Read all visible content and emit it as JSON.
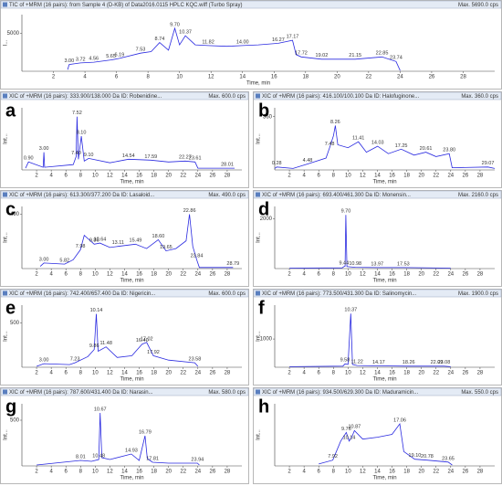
{
  "chart_data": [
    {
      "type": "line",
      "title": "TIC of +MRM (16 pairs): from Sample 4 (D-KB) of Data2016.0115 HPLC KQC.wiff (Turbo Spray)",
      "max_label": "Max. 5690.0 cps",
      "y_label": "I...",
      "x_label": "Time, min",
      "color": "#2a2ae0",
      "xlim": [
        0,
        30
      ],
      "xticks": [
        2,
        4,
        6,
        8,
        10,
        12,
        14,
        16,
        18,
        20,
        22,
        24,
        26,
        28
      ],
      "ylim": [
        0,
        7500
      ],
      "yticks": [
        5000
      ],
      "x": [
        2.9,
        3.0,
        3.72,
        4.56,
        5.65,
        6.19,
        7.53,
        8.2,
        8.74,
        9.3,
        9.7,
        10.0,
        10.37,
        11.0,
        11.82,
        13.0,
        14.0,
        15.0,
        16.27,
        17.17,
        17.4,
        17.72,
        19.02,
        21.15,
        22.85,
        23.74,
        24.0
      ],
      "values": [
        200,
        900,
        1100,
        1200,
        1500,
        1700,
        2400,
        2600,
        3800,
        2800,
        5690,
        3500,
        4700,
        3500,
        3400,
        3300,
        3400,
        3500,
        3700,
        4100,
        2200,
        1900,
        1600,
        1600,
        1900,
        1300,
        100
      ],
      "peaks": [
        "3.00",
        "3.72",
        "4.56",
        "5.65",
        "6.19",
        "7.53",
        "8.74",
        "9.70",
        "10.37",
        "11.82",
        "14.00",
        "16.27",
        "17.17",
        "17.72",
        "19.02",
        "21.15",
        "22.85",
        "23.74"
      ]
    },
    {
      "type": "line",
      "letter": "a",
      "title": "XIC of +MRM (16 pairs): 333.900/138.000 Da ID: Robenidine...",
      "max_label": "Max. 600.0 cps",
      "y_label": "Int...",
      "x_label": "Time, min",
      "color": "#2a2ae0",
      "xlim": [
        0,
        30
      ],
      "xticks": [
        2,
        4,
        6,
        8,
        10,
        12,
        14,
        16,
        18,
        20,
        22,
        24,
        26,
        28
      ],
      "ylim": [
        0,
        700
      ],
      "yticks": [],
      "x": [
        0.5,
        0.9,
        2.9,
        3.0,
        3.1,
        7.0,
        7.4,
        7.52,
        7.7,
        8.1,
        8.5,
        9.1,
        12,
        14.54,
        17.59,
        20,
        22.27,
        23.61,
        24,
        28.01,
        29
      ],
      "values": [
        20,
        90,
        30,
        200,
        30,
        60,
        150,
        600,
        120,
        380,
        100,
        130,
        80,
        120,
        110,
        90,
        100,
        90,
        20,
        20,
        20
      ],
      "peaks": [
        "0.90",
        "3.00",
        "7.40",
        "7.52",
        "8.10",
        "9.10",
        "14.54",
        "17.59",
        "22.27",
        "23.61",
        "28.01"
      ]
    },
    {
      "type": "line",
      "letter": "b",
      "title": "XIC of +MRM (16 pairs): 416.100/100.100 Da ID: Halofuginone...",
      "max_label": "Max. 360.0 cps",
      "y_label": "Int...",
      "x_label": "Time, min",
      "color": "#2a2ae0",
      "xlim": [
        0,
        30
      ],
      "xticks": [
        2,
        4,
        6,
        8,
        10,
        12,
        14,
        16,
        18,
        20,
        22,
        24,
        26,
        28
      ],
      "ylim": [
        0,
        420
      ],
      "yticks": [
        360
      ],
      "x": [
        0,
        0.28,
        2.5,
        4.48,
        7,
        7.48,
        8.0,
        8.26,
        8.6,
        10,
        11.41,
        12.5,
        14.03,
        15.5,
        17.25,
        19,
        20.61,
        22,
        23.8,
        24.2,
        29.07,
        30
      ],
      "values": [
        10,
        20,
        10,
        40,
        80,
        150,
        230,
        300,
        170,
        150,
        190,
        120,
        160,
        110,
        140,
        100,
        120,
        90,
        110,
        15,
        20,
        10
      ],
      "peaks": [
        "0.28",
        "4.48",
        "7.48",
        "8.26",
        "11.41",
        "14.03",
        "17.25",
        "20.61",
        "23.80",
        "29.07"
      ]
    },
    {
      "type": "line",
      "letter": "c",
      "title": "XIC of +MRM (16 pairs): 613.300/377.200 Da ID: Lasaloid...",
      "max_label": "Max. 490.0 cps",
      "y_label": "Int...",
      "x_label": "Time, min",
      "color": "#2a2ae0",
      "xlim": [
        0,
        30
      ],
      "xticks": [
        2,
        4,
        6,
        8,
        10,
        12,
        14,
        16,
        18,
        20,
        22,
        24,
        26,
        28
      ],
      "ylim": [
        0,
        560
      ],
      "yticks": [
        490
      ],
      "x": [
        2.5,
        3.0,
        5.82,
        7.0,
        7.98,
        8.5,
        9.86,
        10.64,
        12,
        13.11,
        15.49,
        17,
        18.6,
        19.65,
        21,
        22.4,
        22.86,
        23.3,
        23.84,
        24.2,
        28.79
      ],
      "values": [
        20,
        50,
        40,
        80,
        170,
        300,
        220,
        230,
        190,
        200,
        220,
        180,
        260,
        160,
        180,
        250,
        490,
        200,
        80,
        10,
        10
      ],
      "peaks": [
        "3.00",
        "5.82",
        "7.98",
        "9.86",
        "10.64",
        "13.11",
        "15.49",
        "18.60",
        "19.65",
        "22.86",
        "23.84",
        "28.79"
      ]
    },
    {
      "type": "line",
      "letter": "d",
      "title": "XIC of +MRM (16 pairs): 693.400/461.300 Da ID: Monensin...",
      "max_label": "Max. 2160.0 cps",
      "y_label": "Int...",
      "x_label": "Time, min",
      "color": "#2a2ae0",
      "xlim": [
        0,
        30
      ],
      "xticks": [
        2,
        4,
        6,
        8,
        10,
        12,
        14,
        16,
        18,
        20,
        22,
        24,
        26,
        28
      ],
      "ylim": [
        0,
        2500
      ],
      "yticks": [
        2000
      ],
      "x": [
        2,
        9.2,
        9.44,
        9.6,
        9.7,
        9.85,
        10.98,
        13.97,
        17.53,
        24
      ],
      "values": [
        20,
        30,
        80,
        100,
        2160,
        80,
        50,
        40,
        40,
        20
      ],
      "peaks": [
        "9.44",
        "9.70",
        "10.98",
        "13.97",
        "17.53"
      ]
    },
    {
      "type": "line",
      "letter": "e",
      "title": "XIC of +MRM (16 pairs): 742.400/657.400 Da ID: Nigericin...",
      "max_label": "Max. 600.0 cps",
      "y_label": "Int...",
      "x_label": "Time, min",
      "color": "#2a2ae0",
      "xlim": [
        0,
        30
      ],
      "xticks": [
        2,
        4,
        6,
        8,
        10,
        12,
        14,
        16,
        18,
        20,
        22,
        24,
        26,
        28
      ],
      "ylim": [
        0,
        700
      ],
      "yticks": [
        500
      ],
      "x": [
        2,
        3.0,
        6.5,
        7.23,
        9.0,
        9.86,
        10.14,
        10.4,
        11.48,
        13,
        15,
        16.4,
        17.02,
        17.92,
        20,
        23.58,
        24
      ],
      "values": [
        10,
        40,
        30,
        50,
        120,
        200,
        600,
        180,
        230,
        110,
        130,
        260,
        280,
        130,
        80,
        50,
        10
      ],
      "peaks": [
        "3.00",
        "7.23",
        "9.86",
        "10.14",
        "11.48",
        "16.40",
        "17.02",
        "17.92",
        "23.58"
      ]
    },
    {
      "type": "line",
      "letter": "f",
      "title": "XIC of +MRM (16 pairs): 773.500/431.300 Da ID: Salinomycin...",
      "max_label": "Max. 1900.0 cps",
      "y_label": "Int...",
      "x_label": "Time, min",
      "color": "#2a2ae0",
      "xlim": [
        0,
        30
      ],
      "xticks": [
        2,
        4,
        6,
        8,
        10,
        12,
        14,
        16,
        18,
        20,
        22,
        24,
        26,
        28
      ],
      "ylim": [
        0,
        2200
      ],
      "yticks": [
        1000
      ],
      "x": [
        2,
        9.3,
        9.58,
        10.0,
        10.37,
        10.6,
        11.22,
        14.17,
        18.26,
        22.09,
        23.08,
        24
      ],
      "values": [
        20,
        40,
        120,
        100,
        1900,
        100,
        60,
        50,
        40,
        40,
        40,
        20
      ],
      "peaks": [
        "9.58",
        "10.37",
        "11.22",
        "14.17",
        "18.26",
        "22.09",
        "23.08"
      ]
    },
    {
      "type": "line",
      "letter": "g",
      "title": "XIC of +MRM (16 pairs): 787.600/431.400 Da ID: Narasin...",
      "max_label": "Max. 580.0 cps",
      "y_label": "Int...",
      "x_label": "Time, min",
      "color": "#2a2ae0",
      "xlim": [
        0,
        30
      ],
      "xticks": [
        2,
        4,
        6,
        8,
        10,
        12,
        14,
        16,
        18,
        20,
        22,
        24,
        26,
        28
      ],
      "ylim": [
        0,
        680
      ],
      "yticks": [
        500
      ],
      "x": [
        2,
        8.01,
        9.5,
        10.48,
        10.67,
        10.9,
        12,
        14.93,
        16.0,
        16.79,
        17.1,
        17.81,
        20,
        23.94,
        24.2
      ],
      "values": [
        10,
        60,
        50,
        70,
        580,
        90,
        70,
        130,
        60,
        330,
        80,
        40,
        30,
        30,
        10
      ],
      "peaks": [
        "8.01",
        "10.48",
        "10.67",
        "14.93",
        "16.79",
        "17.81",
        "23.94"
      ]
    },
    {
      "type": "line",
      "letter": "h",
      "title": "XIC of +MRM (16 pairs): 934.500/629.300 Da ID: Maduramicin...",
      "max_label": "Max. 550.0 cps",
      "y_label": "Int...",
      "x_label": "Time, min",
      "color": "#2a2ae0",
      "xlim": [
        0,
        30
      ],
      "xticks": [
        2,
        4,
        6,
        8,
        10,
        12,
        14,
        16,
        18,
        20,
        22,
        24,
        26,
        28
      ],
      "ylim": [
        0,
        650
      ],
      "yticks": [],
      "x": [
        6,
        7.92,
        9.0,
        9.76,
        10.14,
        10.5,
        10.87,
        12,
        14,
        16,
        17.06,
        17.6,
        19.1,
        20.78,
        23.65,
        24.2
      ],
      "values": [
        20,
        60,
        260,
        350,
        260,
        300,
        370,
        280,
        300,
        330,
        440,
        150,
        70,
        60,
        40,
        10
      ],
      "peaks": [
        "7.92",
        "9.76",
        "10.14",
        "10.87",
        "17.06",
        "19.10",
        "20.78",
        "23.65"
      ]
    }
  ]
}
